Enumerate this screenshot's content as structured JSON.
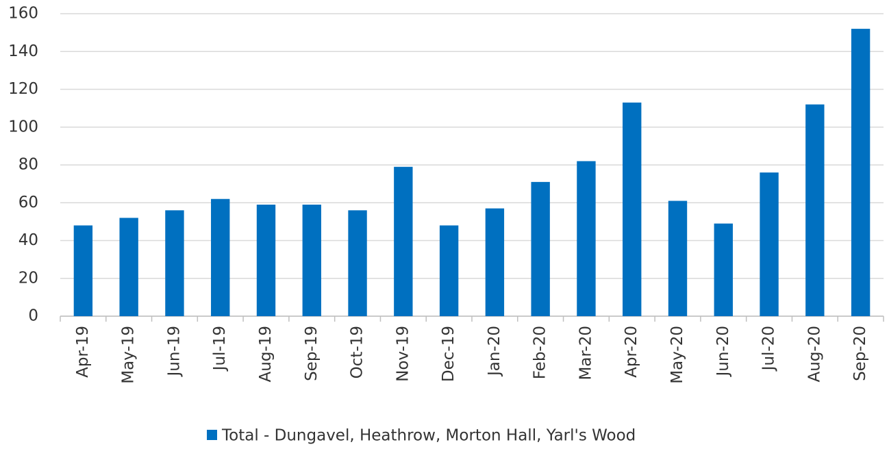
{
  "chart_data": {
    "type": "bar",
    "categories": [
      "Apr-19",
      "May-19",
      "Jun-19",
      "Jul-19",
      "Aug-19",
      "Sep-19",
      "Oct-19",
      "Nov-19",
      "Dec-19",
      "Jan-20",
      "Feb-20",
      "Mar-20",
      "Apr-20",
      "May-20",
      "Jun-20",
      "Jul-20",
      "Aug-20",
      "Sep-20"
    ],
    "series": [
      {
        "name": "Total - Dungavel, Heathrow, Morton Hall, Yarl's Wood",
        "color": "#0070c0",
        "values": [
          48,
          52,
          56,
          62,
          59,
          59,
          56,
          79,
          48,
          57,
          71,
          82,
          113,
          61,
          49,
          76,
          112,
          152
        ]
      }
    ],
    "ylim": [
      0,
      160
    ],
    "yticks": [
      0,
      20,
      40,
      60,
      80,
      100,
      120,
      140,
      160
    ],
    "grid": true,
    "legend": "bottom"
  }
}
